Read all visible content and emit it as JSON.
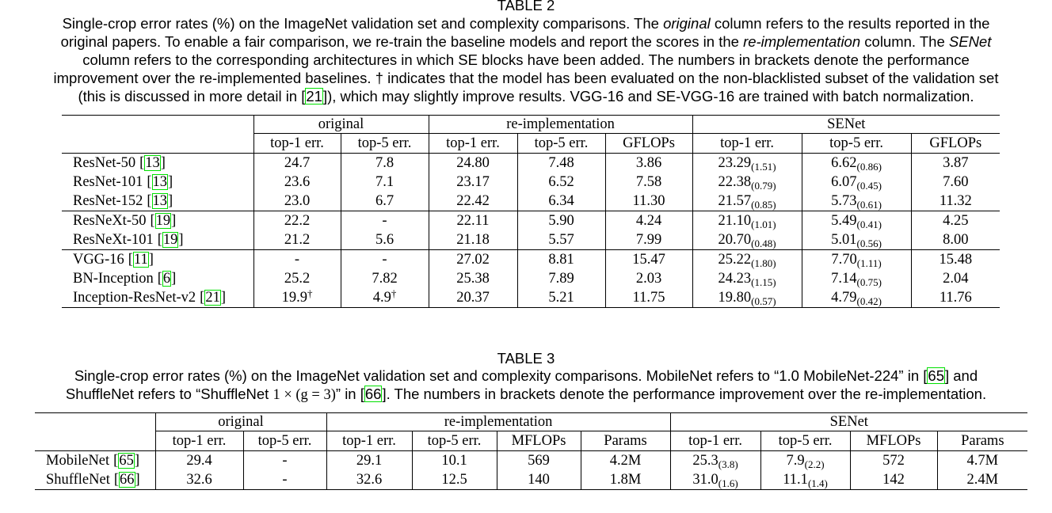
{
  "table2": {
    "label": "TABLE 2",
    "caption": [
      "Single-crop error rates (%) on the ImageNet validation set and complexity comparisons. The ",
      "original",
      " column refers to the results reported in the",
      "original papers. To enable a fair comparison, we re-train the baseline models and report the scores in the ",
      "re-implementation",
      " column. The ",
      "SENet",
      "column refers to the corresponding architectures in which SE blocks have been added. The numbers in brackets denote the performance",
      "improvement over the re-implemented baselines. † indicates that the model has been evaluated on the non-blacklisted subset of the validation set",
      "(this is discussed in more detail in ",
      "21",
      "), which may slightly improve results. VGG-16 and SE-VGG-16 are trained with batch normalization."
    ],
    "groups": [
      {
        "name": "original",
        "columns": [
          "top-1 err.",
          "top-5 err."
        ]
      },
      {
        "name": "re-implementation",
        "columns": [
          "top-1 err.",
          "top-5 err.",
          "GFLOPs"
        ]
      },
      {
        "name": "SENet",
        "columns": [
          "top-1 err.",
          "top-5 err.",
          "GFLOPs"
        ]
      }
    ],
    "row_groups": [
      [
        {
          "model": "ResNet-50",
          "cite": "13",
          "cells": [
            "24.7",
            "7.8",
            "24.80",
            "7.48",
            "3.86",
            [
              "23.29",
              "(1.51)"
            ],
            [
              "6.62",
              "(0.86)"
            ],
            "3.87"
          ]
        },
        {
          "model": "ResNet-101",
          "cite": "13",
          "cells": [
            "23.6",
            "7.1",
            "23.17",
            "6.52",
            "7.58",
            [
              "22.38",
              "(0.79)"
            ],
            [
              "6.07",
              "(0.45)"
            ],
            "7.60"
          ]
        },
        {
          "model": "ResNet-152",
          "cite": "13",
          "cells": [
            "23.0",
            "6.7",
            "22.42",
            "6.34",
            "11.30",
            [
              "21.57",
              "(0.85)"
            ],
            [
              "5.73",
              "(0.61)"
            ],
            "11.32"
          ]
        }
      ],
      [
        {
          "model": "ResNeXt-50",
          "cite": "19",
          "cells": [
            "22.2",
            "-",
            "22.11",
            "5.90",
            "4.24",
            [
              "21.10",
              "(1.01)"
            ],
            [
              "5.49",
              "(0.41)"
            ],
            "4.25"
          ]
        },
        {
          "model": "ResNeXt-101",
          "cite": "19",
          "cells": [
            "21.2",
            "5.6",
            "21.18",
            "5.57",
            "7.99",
            [
              "20.70",
              "(0.48)"
            ],
            [
              "5.01",
              "(0.56)"
            ],
            "8.00"
          ]
        }
      ],
      [
        {
          "model": "VGG-16",
          "cite": "11",
          "cells": [
            "-",
            "-",
            "27.02",
            "8.81",
            "15.47",
            [
              "25.22",
              "(1.80)"
            ],
            [
              "7.70",
              "(1.11)"
            ],
            "15.48"
          ]
        },
        {
          "model": "BN-Inception",
          "cite": "6",
          "cells": [
            "25.2",
            "7.82",
            "25.38",
            "7.89",
            "2.03",
            [
              "24.23",
              "(1.15)"
            ],
            [
              "7.14",
              "(0.75)"
            ],
            "2.04"
          ]
        },
        {
          "model": "Inception-ResNet-v2",
          "cite": "21",
          "cells": [
            [
              "19.9",
              "†"
            ],
            [
              "4.9",
              "†"
            ],
            "20.37",
            "5.21",
            "11.75",
            [
              "19.80",
              "(0.57)"
            ],
            [
              "4.79",
              "(0.42)"
            ],
            "11.76"
          ]
        }
      ]
    ]
  },
  "table3": {
    "label": "TABLE 3",
    "caption": [
      "Single-crop error rates (%) on the ImageNet validation set and complexity comparisons. MobileNet refers to “1.0 MobileNet-224” in ",
      "65",
      " and",
      "ShuffleNet refers to “ShuffleNet ",
      "1 × (g = 3)",
      "” in ",
      "66",
      ". The numbers in brackets denote the performance improvement over the re-implementation."
    ],
    "groups": [
      {
        "name": "original",
        "columns": [
          "top-1 err.",
          "top-5 err."
        ]
      },
      {
        "name": "re-implementation",
        "columns": [
          "top-1 err.",
          "top-5 err.",
          "MFLOPs",
          "Params"
        ]
      },
      {
        "name": "SENet",
        "columns": [
          "top-1 err.",
          "top-5 err.",
          "MFLOPs",
          "Params"
        ]
      }
    ],
    "row_groups": [
      [
        {
          "model": "MobileNet",
          "cite": "65",
          "cells": [
            "29.4",
            "-",
            "29.1",
            "10.1",
            "569",
            "4.2M",
            [
              "25.3",
              "(3.8)"
            ],
            [
              "7.9",
              "(2.2)"
            ],
            "572",
            "4.7M"
          ]
        },
        {
          "model": "ShuffleNet",
          "cite": "66",
          "cells": [
            "32.6",
            "-",
            "32.6",
            "12.5",
            "140",
            "1.8M",
            [
              "31.0",
              "(1.6)"
            ],
            [
              "11.1",
              "(1.4)"
            ],
            "142",
            "2.4M"
          ]
        }
      ]
    ]
  }
}
